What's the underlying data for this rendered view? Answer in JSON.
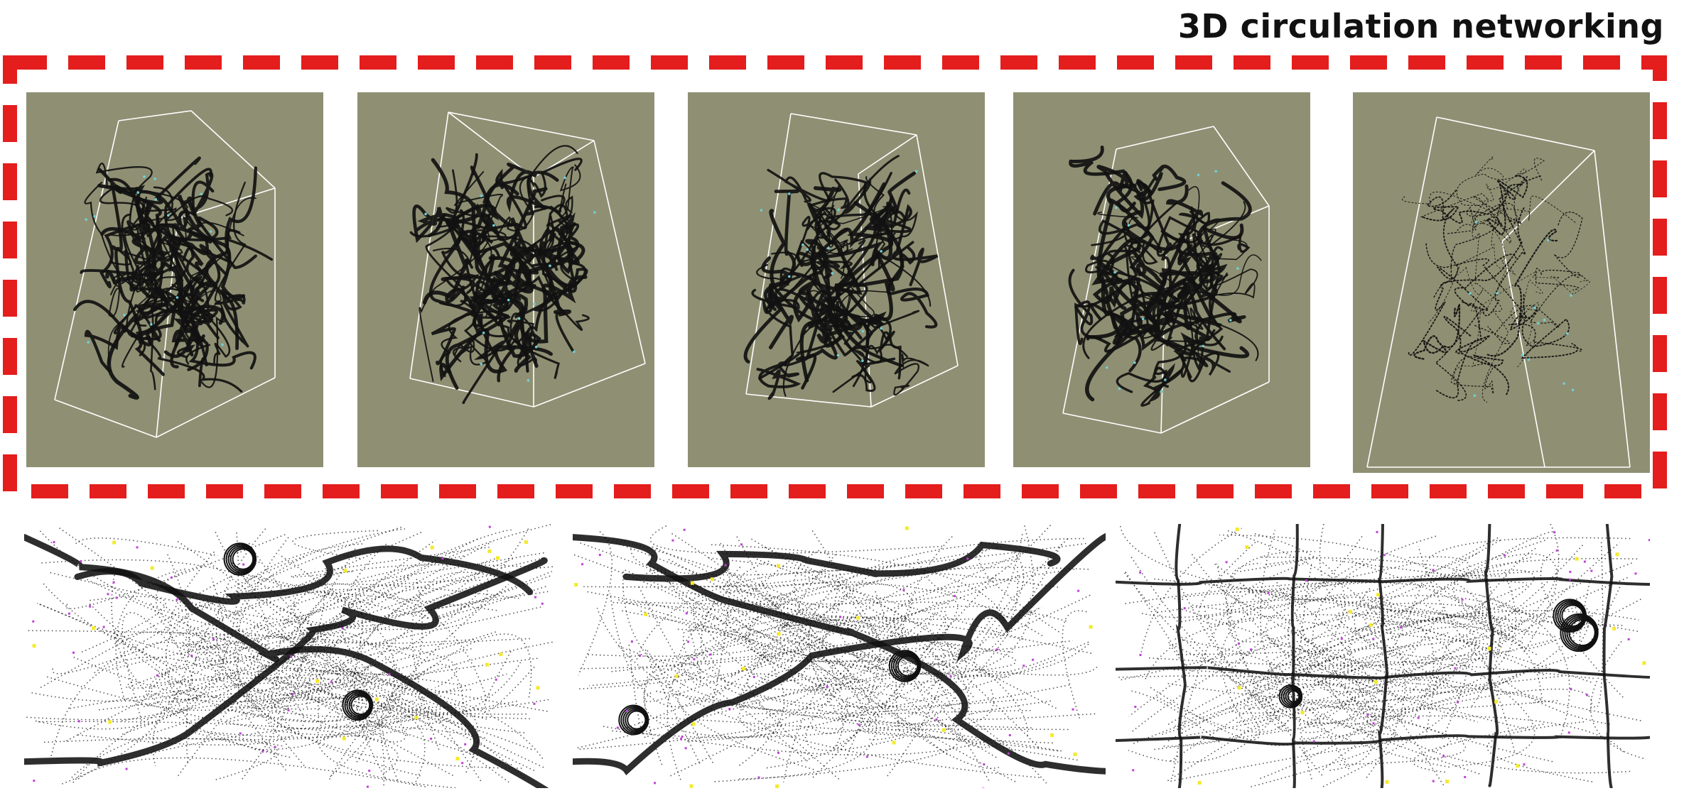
{
  "title": "3D circulation networking",
  "colors": {
    "frame_dash": "#e41d1d",
    "panel_bg": "#8f9073",
    "bounding_box": "#ffffff",
    "paths": "#111111",
    "agent_markers": "#c040d8",
    "node_markers": "#f4ea2a"
  },
  "top_row": {
    "panels": [
      {
        "name": "3d-view-1"
      },
      {
        "name": "3d-view-2"
      },
      {
        "name": "3d-view-3"
      },
      {
        "name": "3d-view-4"
      },
      {
        "name": "3d-view-5"
      }
    ]
  },
  "bottom_row": {
    "panels": [
      {
        "name": "plan-trails-1"
      },
      {
        "name": "plan-trails-2"
      },
      {
        "name": "plan-trails-3"
      }
    ]
  }
}
